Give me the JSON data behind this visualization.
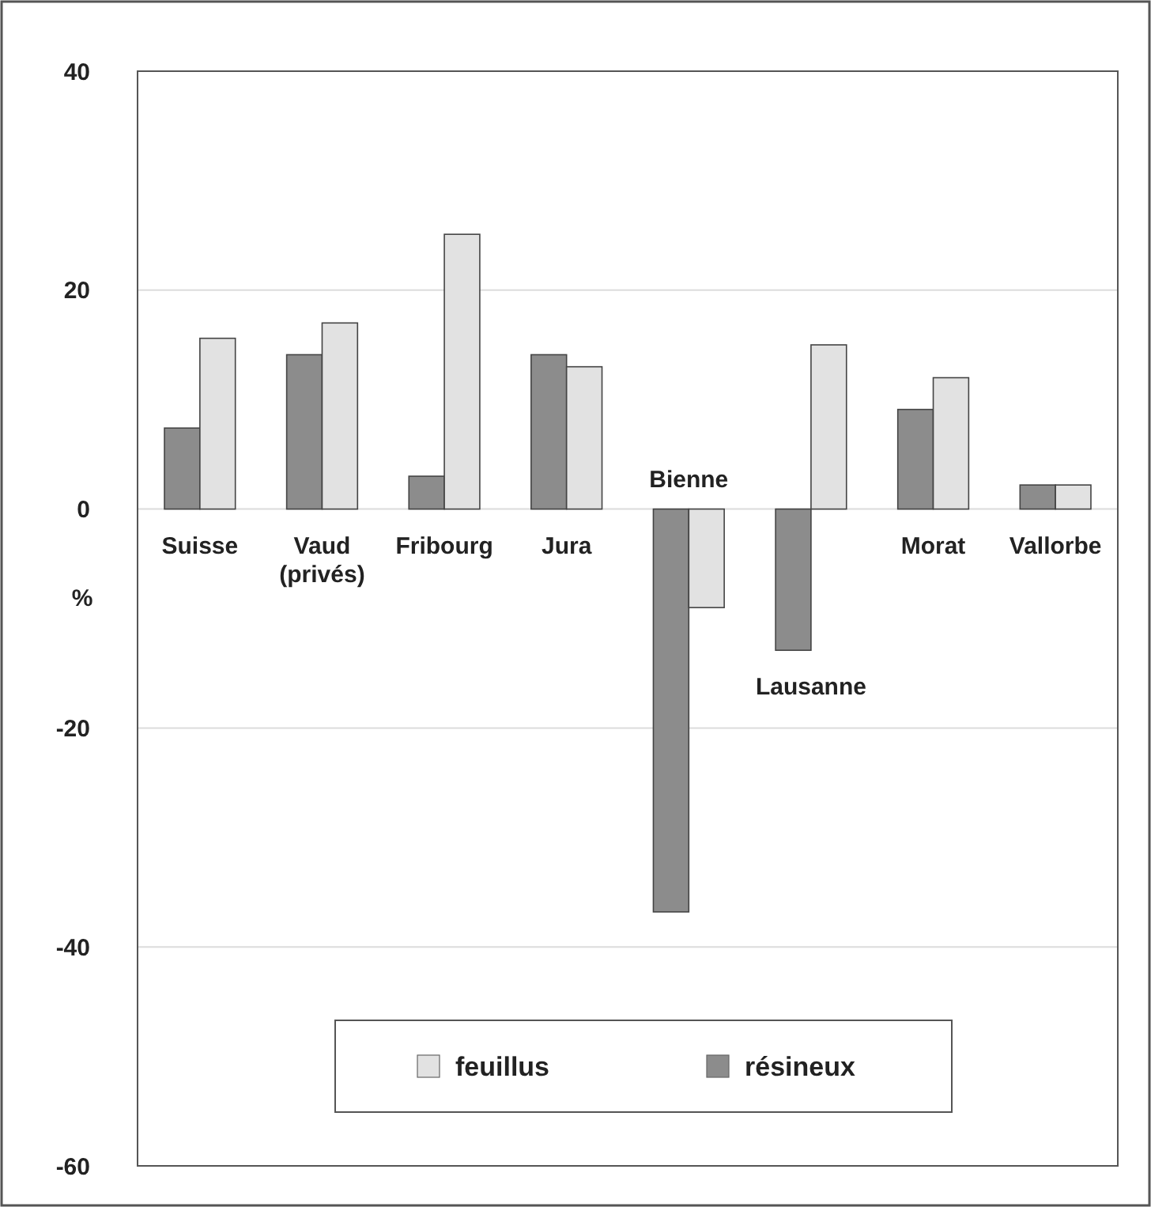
{
  "chart_data": {
    "type": "bar",
    "ylabel": "%",
    "categories": [
      "Suisse",
      "Vaud\n(privés)",
      "Fribourg",
      "Jura",
      "Bienne",
      "Lausanne",
      "Morat",
      "Vallorbe"
    ],
    "series": [
      {
        "name": "résineux",
        "color": "#8c8c8c",
        "values": [
          7.4,
          14.1,
          3.0,
          14.1,
          -36.8,
          -12.9,
          9.1,
          2.2
        ]
      },
      {
        "name": "feuillus",
        "color": "#e2e2e2",
        "values": [
          15.6,
          17.0,
          25.1,
          13.0,
          -9.0,
          15.0,
          12.0,
          2.2
        ]
      }
    ],
    "ylim": [
      -60,
      40
    ],
    "yticks": [
      -60,
      -40,
      -20,
      0,
      20,
      40
    ],
    "grid": "y",
    "legend": "bottom"
  }
}
